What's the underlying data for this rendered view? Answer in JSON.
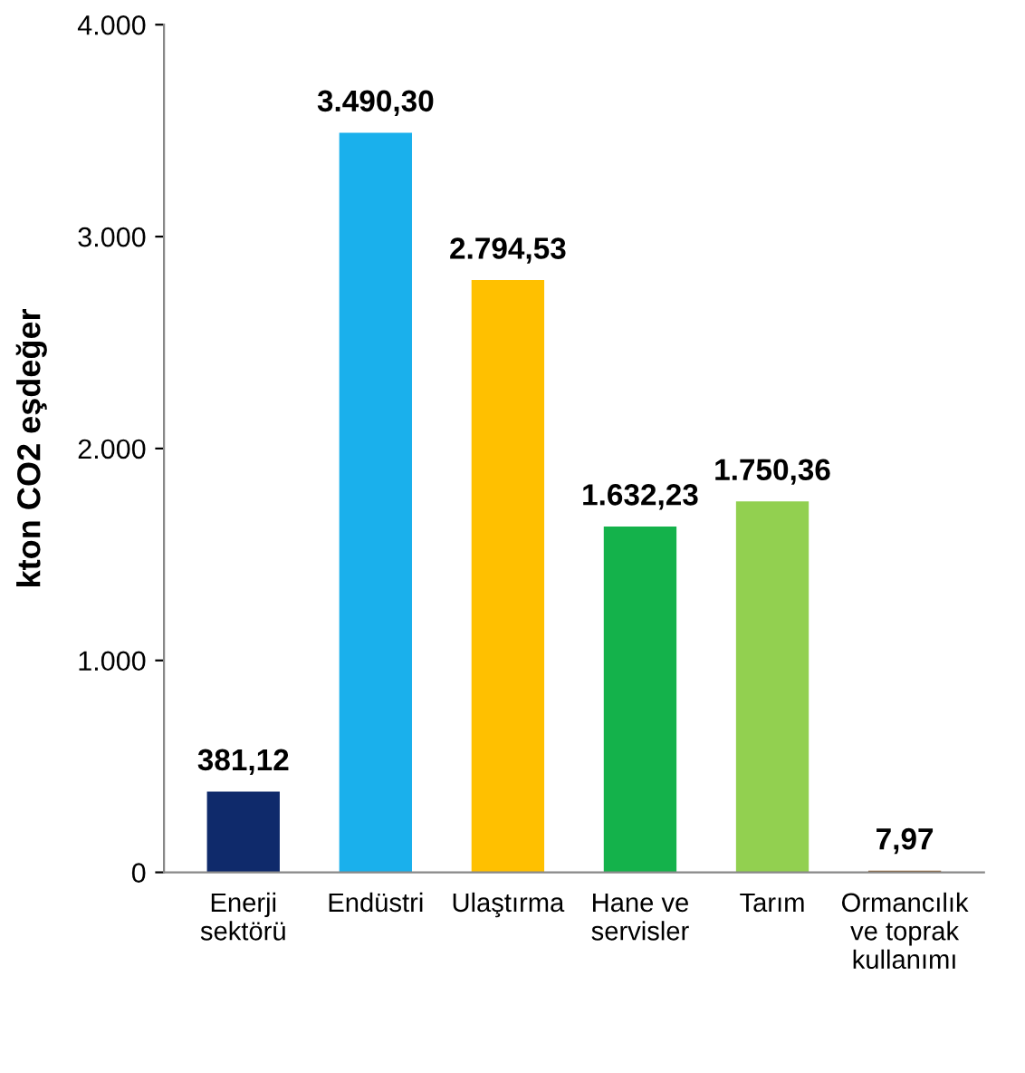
{
  "chart_data": {
    "type": "bar",
    "ylabel": "kton CO2 eşdeğer",
    "categories": [
      "Enerji\nsektörü",
      "Endüstri",
      "Ulaştırma",
      "Hane ve\nservisler",
      "Tarım",
      "Ormancılık\nve toprak\nkullanımı"
    ],
    "values": [
      381.12,
      3490.3,
      2794.53,
      1632.23,
      1750.36,
      7.97
    ],
    "colors": [
      "#0f2a6b",
      "#1ab0ec",
      "#ffc000",
      "#14b24b",
      "#92d050",
      "#8b5a2b"
    ],
    "value_labels": [
      "381,12",
      "3.490,30",
      "2.794,53",
      "1.632,23",
      "1.750,36",
      "7,97"
    ],
    "ylim": [
      0,
      4000
    ],
    "yticks": [
      {
        "value": 0,
        "label": "0"
      },
      {
        "value": 1000,
        "label": "1.000"
      },
      {
        "value": 2000,
        "label": "2.000"
      },
      {
        "value": 3000,
        "label": "3.000"
      },
      {
        "value": 4000,
        "label": "4.000"
      }
    ],
    "grid": false
  }
}
